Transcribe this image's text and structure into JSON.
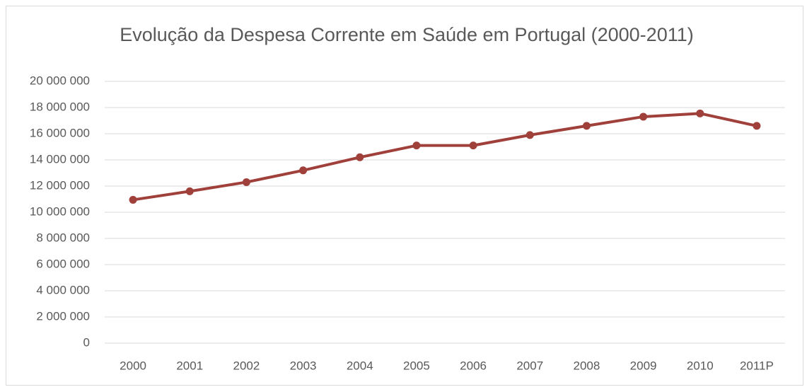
{
  "chart_data": {
    "type": "line",
    "title": "Evolução da Despesa Corrente em Saúde em Portugal (2000-2011)",
    "categories": [
      "2000",
      "2001",
      "2002",
      "2003",
      "2004",
      "2005",
      "2006",
      "2007",
      "2008",
      "2009",
      "2010",
      "2011P"
    ],
    "series": [
      {
        "name": "Despesa Corrente em Saúde",
        "color": "#a0403b",
        "values": [
          10950000,
          11600000,
          12300000,
          13200000,
          14200000,
          15100000,
          15100000,
          15900000,
          16600000,
          17300000,
          17550000,
          16600000
        ]
      }
    ],
    "ylim": [
      0,
      20000000
    ],
    "yticks": [
      {
        "value": 0,
        "label": "0"
      },
      {
        "value": 2000000,
        "label": "2 000 000"
      },
      {
        "value": 4000000,
        "label": "4 000 000"
      },
      {
        "value": 6000000,
        "label": "6 000 000"
      },
      {
        "value": 8000000,
        "label": "8 000 000"
      },
      {
        "value": 10000000,
        "label": "10 000 000"
      },
      {
        "value": 12000000,
        "label": "12 000 000"
      },
      {
        "value": 14000000,
        "label": "14 000 000"
      },
      {
        "value": 16000000,
        "label": "16 000 000"
      },
      {
        "value": 18000000,
        "label": "18 000 000"
      },
      {
        "value": 20000000,
        "label": "20 000 000"
      }
    ],
    "grid": true
  }
}
